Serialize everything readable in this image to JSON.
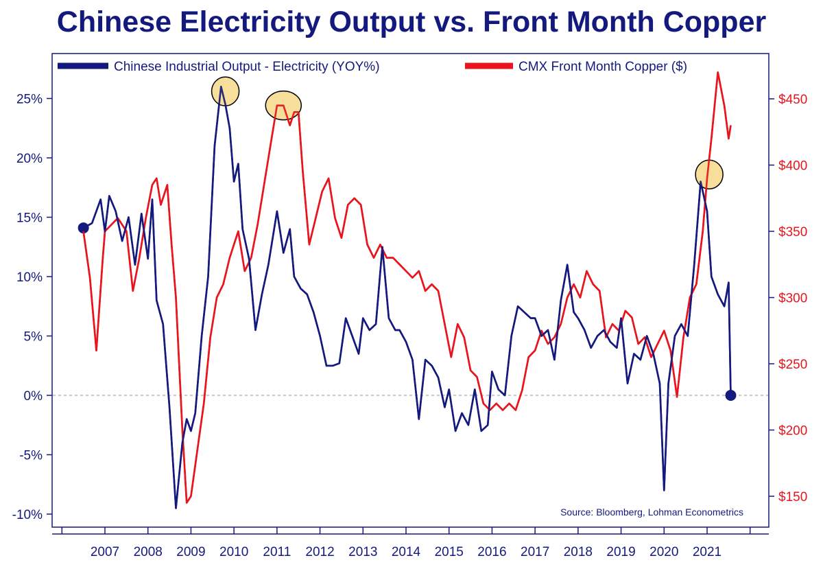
{
  "title": "Chinese Electricity Output vs. Front Month Copper",
  "source": "Source: Bloomberg, Lohman Econometrics",
  "colors": {
    "electricity": "#14197d",
    "copper": "#e8141e",
    "highlight_fill": "#f7d88a",
    "frame": "#14197d"
  },
  "chart_data": {
    "type": "line",
    "title": "Chinese Electricity Output vs. Front Month Copper",
    "legend": [
      "Chinese Industrial Output - Electricity (YOY%)",
      "CMX Front Month Copper ($)"
    ],
    "legend_position": "top",
    "grid": false,
    "zero_line": "dashed",
    "x_ticks": [
      "2007",
      "2008",
      "2009",
      "2010",
      "2011",
      "2012",
      "2013",
      "2014",
      "2015",
      "2016",
      "2017",
      "2018",
      "2019",
      "2020",
      "2021"
    ],
    "y_left": {
      "ticks": [
        "-10%",
        "-5%",
        "0%",
        "5%",
        "10%",
        "15%",
        "20%",
        "25%"
      ],
      "range": [
        -11,
        28
      ]
    },
    "y_right": {
      "ticks": [
        "$150",
        "$200",
        "$250",
        "$300",
        "$350",
        "$400",
        "$450"
      ],
      "range": [
        137,
        475
      ]
    },
    "series": [
      {
        "name": "Chinese Industrial Output - Electricity (YOY%)",
        "axis": "left",
        "x": [
          2006.5,
          2006.7,
          2006.9,
          2007.0,
          2007.1,
          2007.25,
          2007.4,
          2007.55,
          2007.7,
          2007.85,
          2008.0,
          2008.1,
          2008.2,
          2008.35,
          2008.5,
          2008.65,
          2008.8,
          2008.9,
          2009.0,
          2009.1,
          2009.25,
          2009.4,
          2009.55,
          2009.7,
          2009.8,
          2009.9,
          2010.0,
          2010.1,
          2010.2,
          2010.35,
          2010.5,
          2010.65,
          2010.8,
          2011.0,
          2011.15,
          2011.3,
          2011.4,
          2011.55,
          2011.7,
          2011.85,
          2012.0,
          2012.15,
          2012.3,
          2012.45,
          2012.6,
          2012.75,
          2012.9,
          2013.0,
          2013.15,
          2013.3,
          2013.45,
          2013.6,
          2013.75,
          2013.85,
          2014.0,
          2014.15,
          2014.3,
          2014.45,
          2014.6,
          2014.75,
          2014.9,
          2015.0,
          2015.15,
          2015.3,
          2015.45,
          2015.6,
          2015.75,
          2015.9,
          2016.0,
          2016.15,
          2016.3,
          2016.45,
          2016.6,
          2016.75,
          2016.9,
          2017.0,
          2017.15,
          2017.3,
          2017.45,
          2017.6,
          2017.75,
          2017.9,
          2018.0,
          2018.15,
          2018.3,
          2018.45,
          2018.6,
          2018.75,
          2018.9,
          2019.0,
          2019.15,
          2019.3,
          2019.45,
          2019.6,
          2019.75,
          2019.9,
          2020.0,
          2020.1,
          2020.25,
          2020.4,
          2020.55,
          2020.7,
          2020.85,
          2021.0,
          2021.1,
          2021.25,
          2021.4,
          2021.5,
          2021.55
        ],
        "values": [
          14.1,
          14.5,
          16.5,
          13.8,
          16.8,
          15.5,
          13.0,
          15.0,
          11.0,
          15.3,
          11.5,
          16.5,
          8.0,
          6.0,
          -1.0,
          -9.5,
          -4.0,
          -2.0,
          -3.0,
          -1.5,
          5.0,
          10.0,
          21.0,
          26.0,
          24.5,
          22.5,
          18.0,
          19.5,
          14.0,
          11.5,
          5.5,
          8.5,
          11.0,
          15.5,
          12.0,
          14.0,
          10.0,
          9.0,
          8.5,
          7.0,
          5.0,
          2.5,
          2.5,
          2.7,
          6.5,
          5.0,
          3.5,
          6.5,
          5.5,
          6.0,
          12.5,
          6.5,
          5.5,
          5.5,
          4.5,
          3.0,
          -2.0,
          3.0,
          2.5,
          1.5,
          -1.0,
          0.5,
          -3.0,
          -1.5,
          -2.5,
          0.5,
          -3.0,
          -2.5,
          2.0,
          0.5,
          0.0,
          5.0,
          7.5,
          7.0,
          6.5,
          6.5,
          5.0,
          5.5,
          3.0,
          8.0,
          11.0,
          7.0,
          6.5,
          5.5,
          4.0,
          5.0,
          5.5,
          4.5,
          4.0,
          6.5,
          1.0,
          3.5,
          3.0,
          5.0,
          3.5,
          1.0,
          -8.0,
          1.0,
          5.0,
          6.0,
          5.0,
          11.0,
          18.0,
          15.5,
          10.0,
          8.5,
          7.5,
          9.5,
          0.0
        ],
        "end_value": 0.0
      },
      {
        "name": "CMX Front Month Copper ($)",
        "axis": "right",
        "x": [
          2006.5,
          2006.65,
          2006.8,
          2006.95,
          2007.0,
          2007.15,
          2007.3,
          2007.5,
          2007.65,
          2007.8,
          2007.95,
          2008.1,
          2008.2,
          2008.3,
          2008.45,
          2008.55,
          2008.65,
          2008.8,
          2008.9,
          2009.0,
          2009.15,
          2009.3,
          2009.45,
          2009.6,
          2009.75,
          2009.9,
          2010.0,
          2010.1,
          2010.25,
          2010.4,
          2010.55,
          2010.7,
          2010.85,
          2011.0,
          2011.15,
          2011.3,
          2011.4,
          2011.5,
          2011.6,
          2011.75,
          2011.9,
          2012.05,
          2012.2,
          2012.35,
          2012.5,
          2012.65,
          2012.8,
          2012.95,
          2013.1,
          2013.25,
          2013.4,
          2013.55,
          2013.7,
          2013.85,
          2014.0,
          2014.15,
          2014.3,
          2014.45,
          2014.6,
          2014.75,
          2014.9,
          2015.05,
          2015.2,
          2015.35,
          2015.5,
          2015.65,
          2015.8,
          2015.95,
          2016.1,
          2016.25,
          2016.4,
          2016.55,
          2016.7,
          2016.85,
          2017.0,
          2017.15,
          2017.3,
          2017.45,
          2017.6,
          2017.75,
          2017.9,
          2018.05,
          2018.2,
          2018.35,
          2018.5,
          2018.65,
          2018.8,
          2018.95,
          2019.1,
          2019.25,
          2019.4,
          2019.55,
          2019.7,
          2019.85,
          2020.0,
          2020.15,
          2020.3,
          2020.45,
          2020.6,
          2020.75,
          2020.9,
          2021.0,
          2021.1,
          2021.25,
          2021.4,
          2021.5,
          2021.55
        ],
        "values": [
          350,
          315,
          260,
          330,
          350,
          355,
          360,
          350,
          305,
          330,
          360,
          385,
          390,
          370,
          385,
          340,
          300,
          200,
          145,
          150,
          185,
          220,
          270,
          300,
          310,
          330,
          340,
          350,
          320,
          330,
          355,
          385,
          415,
          445,
          445,
          430,
          440,
          440,
          395,
          340,
          360,
          380,
          390,
          360,
          345,
          370,
          375,
          370,
          340,
          330,
          340,
          330,
          330,
          325,
          320,
          315,
          320,
          305,
          310,
          305,
          280,
          255,
          280,
          270,
          245,
          240,
          220,
          215,
          220,
          215,
          220,
          215,
          230,
          255,
          260,
          275,
          265,
          270,
          280,
          300,
          310,
          300,
          320,
          310,
          305,
          270,
          280,
          275,
          290,
          285,
          265,
          270,
          255,
          265,
          275,
          260,
          225,
          270,
          300,
          310,
          350,
          390,
          420,
          470,
          445,
          420,
          430
        ]
      }
    ],
    "annotations": [
      {
        "label": "highlight",
        "series": "Chinese Industrial Output - Electricity (YOY%)",
        "x": 2009.8,
        "y": 25.6
      },
      {
        "label": "highlight",
        "series": "CMX Front Month Copper ($)",
        "x": 2011.15,
        "y": 445
      },
      {
        "label": "highlight",
        "series": "Chinese Industrial Output - Electricity (YOY%)",
        "x": 2021.05,
        "y": 18.6
      }
    ]
  }
}
